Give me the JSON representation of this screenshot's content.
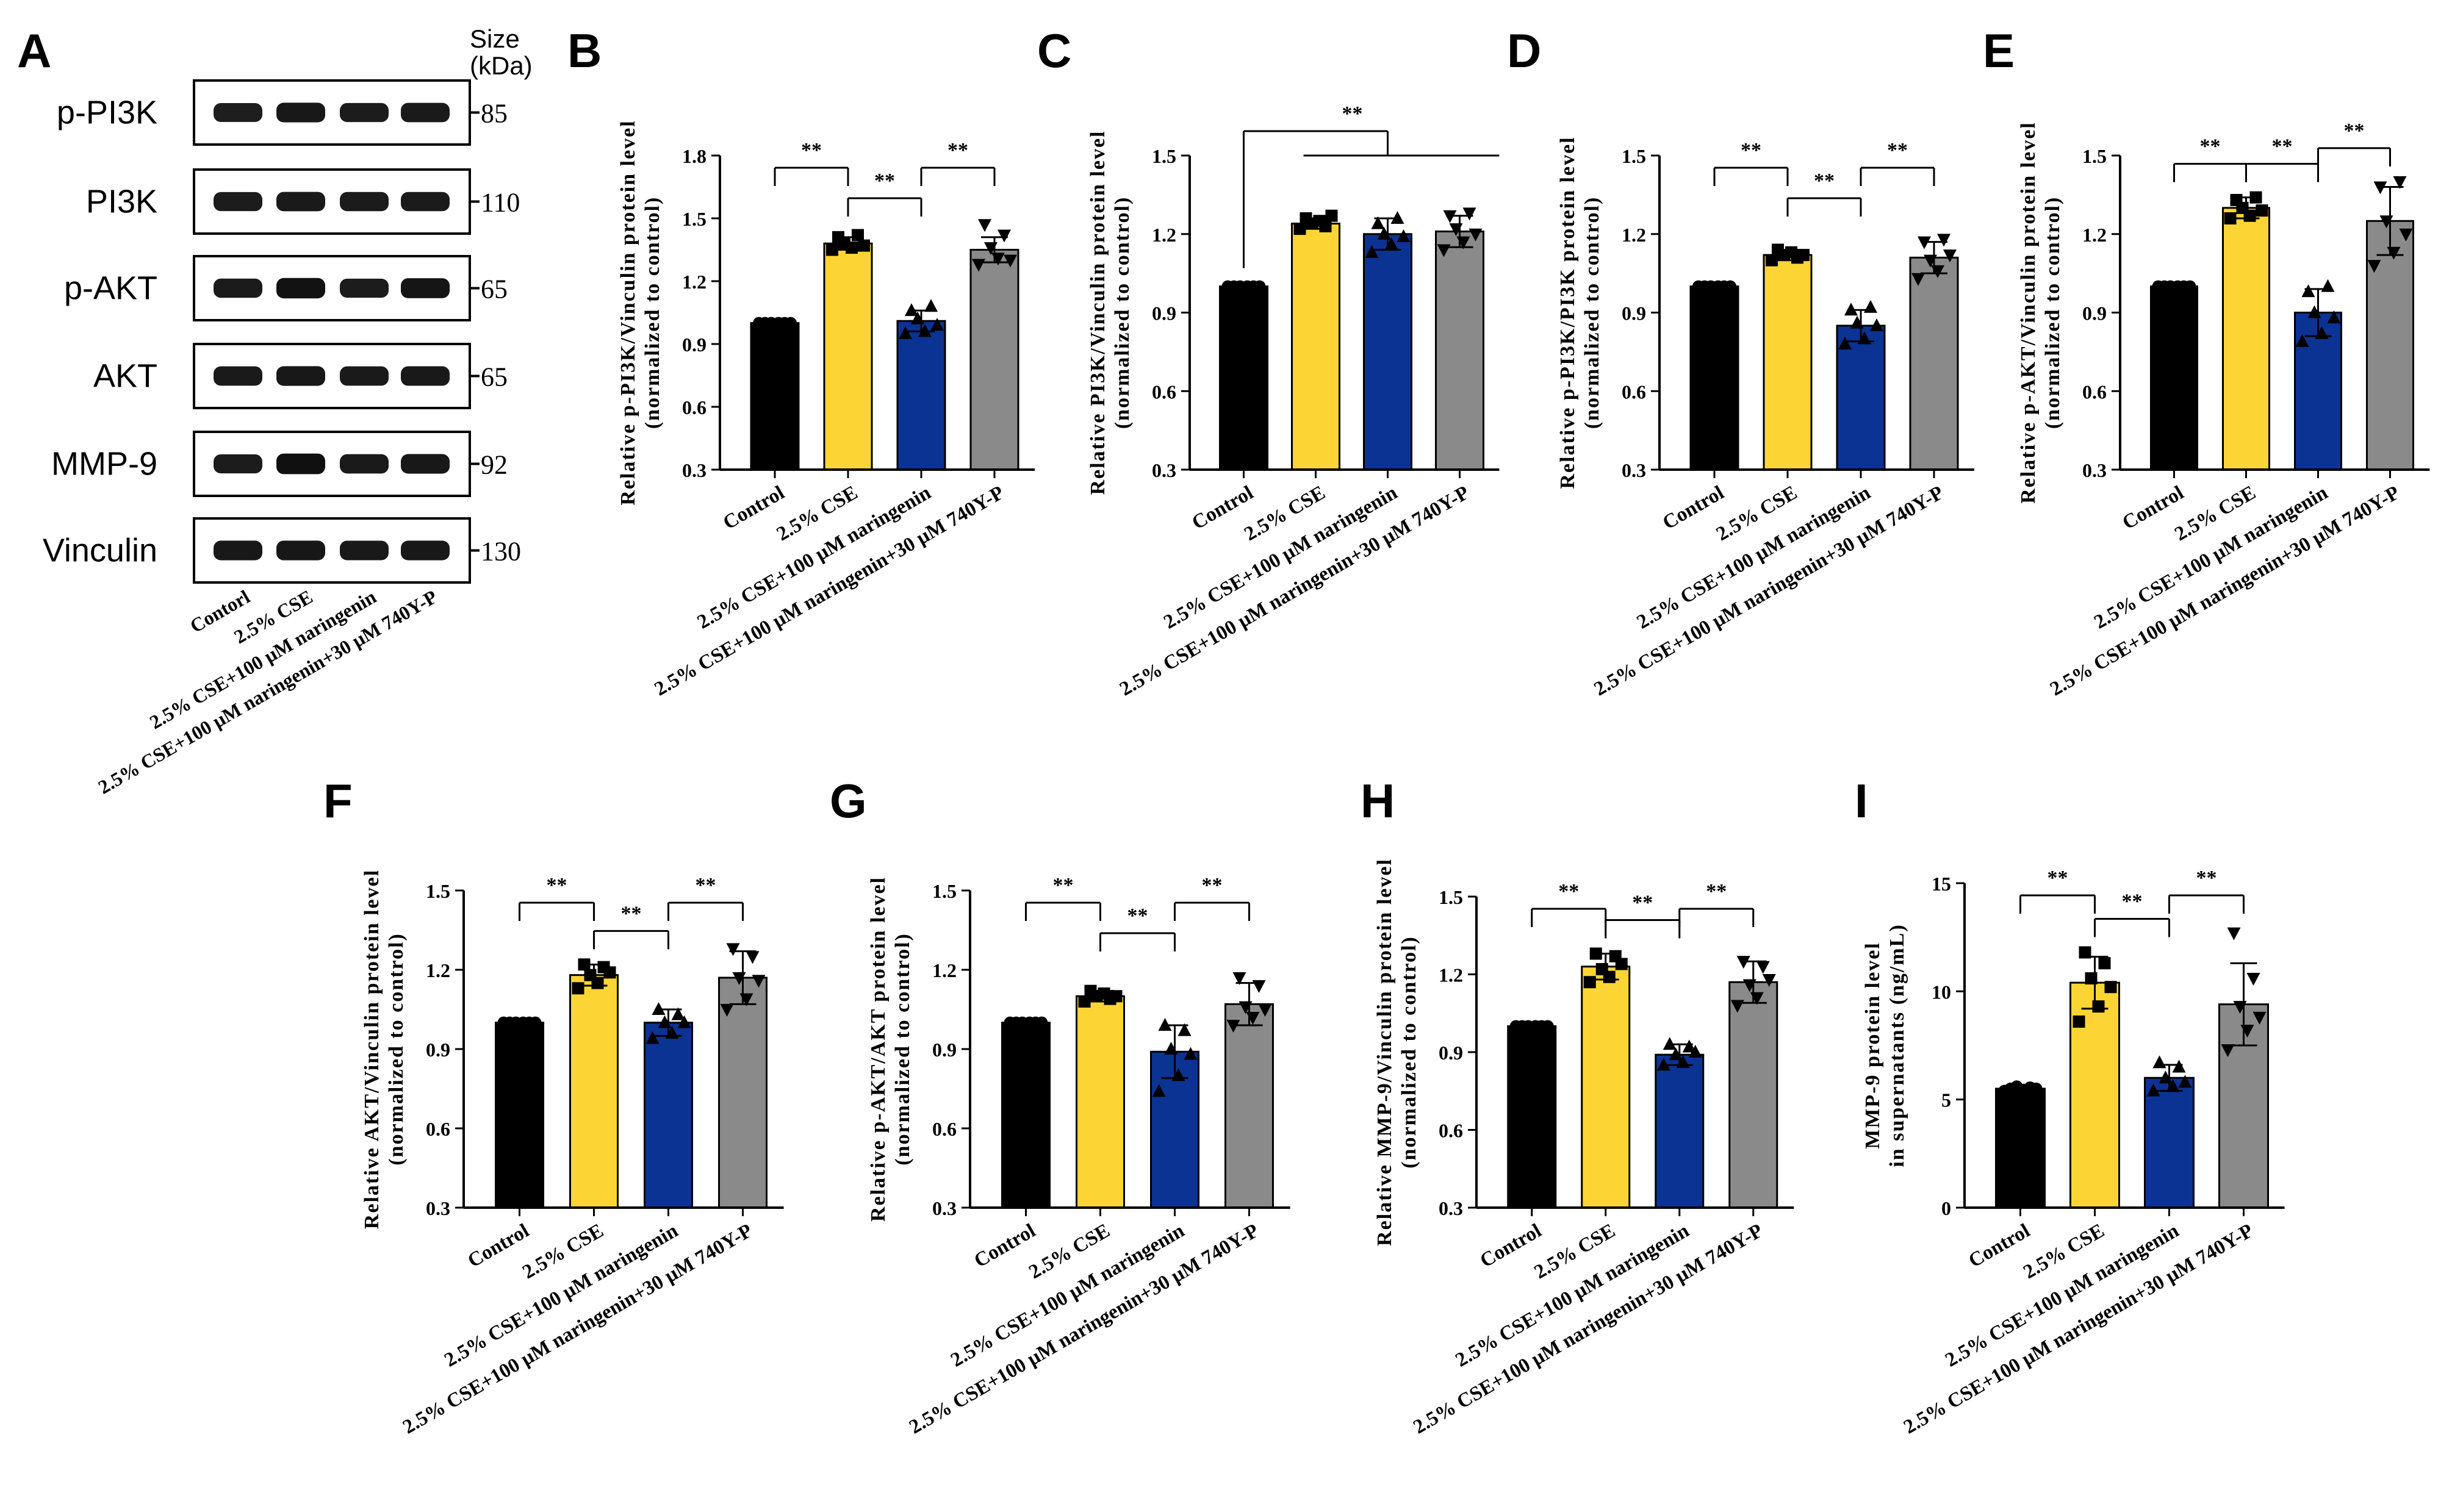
{
  "colors": {
    "control": "#000000",
    "cse": "#fcd535",
    "naringenin": "#0b3394",
    "naringenin_740yp": "#8a8a8a",
    "axis": "#000000"
  },
  "group_labels": [
    "Control",
    "2.5% CSE",
    "2.5% CSE+100 μM naringenin",
    "2.5% CSE+100 μM naringenin+30 μM 740Y-P"
  ],
  "significance": "**",
  "western_blot": {
    "panel_letter": "A",
    "size_header": [
      "Size",
      "(kDa)"
    ],
    "lane_labels": [
      "Contorl",
      "2.5% CSE",
      "2.5% CSE+100 μM naringenin",
      "2.5% CSE+100 μM naringenin+30 μM 740Y-P"
    ],
    "bands": [
      {
        "protein": "p-PI3K",
        "size": "85",
        "intensities": [
          0.75,
          0.85,
          0.78,
          0.82
        ]
      },
      {
        "protein": "PI3K",
        "size": "110",
        "intensities": [
          0.78,
          0.82,
          0.8,
          0.8
        ]
      },
      {
        "protein": "p-AKT",
        "size": "65",
        "intensities": [
          0.8,
          0.95,
          0.78,
          0.9
        ]
      },
      {
        "protein": "AKT",
        "size": "65",
        "intensities": [
          0.82,
          0.85,
          0.82,
          0.84
        ]
      },
      {
        "protein": "MMP-9",
        "size": "92",
        "intensities": [
          0.78,
          0.98,
          0.82,
          0.85
        ]
      },
      {
        "protein": "Vinculin",
        "size": "130",
        "intensities": [
          0.85,
          0.86,
          0.84,
          0.85
        ]
      }
    ]
  },
  "chart_data": [
    {
      "panel": "B",
      "type": "bar",
      "ylabel": [
        "Relative p-PI3K/Vinculin protein level",
        "(normalized to control)"
      ],
      "ylim": [
        0.3,
        1.8
      ],
      "yticks": [
        0.3,
        0.6,
        0.9,
        1.2,
        1.5,
        1.8
      ],
      "ytick_labels": [
        "0.3",
        "0.6",
        "0.9",
        "1.2",
        "1.5",
        "1.8"
      ],
      "categories": [
        "Control",
        "2.5% CSE",
        "2.5% CSE+100 μM naringenin",
        "2.5% CSE+100 μM naringenin+30 μM 740Y-P"
      ],
      "values": [
        1.0,
        1.38,
        1.01,
        1.35
      ],
      "errors": [
        0,
        0.03,
        0.05,
        0.06
      ],
      "points": [
        [
          1.0,
          1.0,
          1.0,
          1.0,
          1.0,
          1.0
        ],
        [
          1.35,
          1.41,
          1.38,
          1.36,
          1.42,
          1.37
        ],
        [
          0.95,
          1.06,
          1.02,
          0.96,
          1.08,
          0.99
        ],
        [
          1.28,
          1.47,
          1.36,
          1.31,
          1.42,
          1.3
        ]
      ],
      "brackets": [
        {
          "from": 0,
          "to": 1,
          "label": "**"
        },
        {
          "from": 1,
          "to": 2,
          "label": "**"
        },
        {
          "from": 2,
          "to": 3,
          "label": "**"
        }
      ]
    },
    {
      "panel": "C",
      "type": "bar",
      "ylabel": [
        "Relative PI3K/Vinculin protein level",
        "(normalized to control)"
      ],
      "ylim": [
        0.3,
        1.5
      ],
      "yticks": [
        0.3,
        0.6,
        0.9,
        1.2,
        1.5
      ],
      "ytick_labels": [
        "0.3",
        "0.6",
        "0.9",
        "1.2",
        "1.5"
      ],
      "categories": [
        "Control",
        "2.5% CSE",
        "2.5% CSE+100 μM naringenin",
        "2.5% CSE+100 μM naringenin+30 μM 740Y-P"
      ],
      "values": [
        1.0,
        1.24,
        1.2,
        1.21
      ],
      "errors": [
        0,
        0.02,
        0.06,
        0.06
      ],
      "points": [
        [
          1.0,
          1.0,
          1.0,
          1.0,
          1.0,
          1.0
        ],
        [
          1.22,
          1.26,
          1.24,
          1.25,
          1.23,
          1.27
        ],
        [
          1.13,
          1.24,
          1.2,
          1.16,
          1.26,
          1.19
        ],
        [
          1.14,
          1.27,
          1.22,
          1.17,
          1.28,
          1.2
        ]
      ],
      "brackets": [
        {
          "from": 0,
          "to_span": [
            1,
            3
          ],
          "label": "**"
        }
      ]
    },
    {
      "panel": "D",
      "type": "bar",
      "ylabel": [
        "Relative p-PI3K/PI3K protein level",
        "(normalized to control)"
      ],
      "ylim": [
        0.3,
        1.5
      ],
      "yticks": [
        0.3,
        0.6,
        0.9,
        1.2,
        1.5
      ],
      "ytick_labels": [
        "0.3",
        "0.6",
        "0.9",
        "1.2",
        "1.5"
      ],
      "categories": [
        "Control",
        "2.5% CSE",
        "2.5% CSE+100 μM naringenin",
        "2.5% CSE+100 μM naringenin+30 μM 740Y-P"
      ],
      "values": [
        1.0,
        1.12,
        0.85,
        1.11
      ],
      "errors": [
        0,
        0.02,
        0.06,
        0.06
      ],
      "points": [
        [
          1.0,
          1.0,
          1.0,
          1.0,
          1.0,
          1.0
        ],
        [
          1.1,
          1.14,
          1.12,
          1.13,
          1.11,
          1.12
        ],
        [
          0.78,
          0.91,
          0.86,
          0.8,
          0.92,
          0.85
        ],
        [
          1.03,
          1.17,
          1.1,
          1.06,
          1.18,
          1.12
        ]
      ],
      "brackets": [
        {
          "from": 0,
          "to": 1,
          "label": "**"
        },
        {
          "from": 1,
          "to": 2,
          "label": "**"
        },
        {
          "from": 2,
          "to": 3,
          "label": "**"
        }
      ]
    },
    {
      "panel": "E",
      "type": "bar",
      "ylabel": [
        "Relative p-AKT/Vinculin protein level",
        "(normalized to control)"
      ],
      "ylim": [
        0.3,
        1.5
      ],
      "yticks": [
        0.3,
        0.6,
        0.9,
        1.2,
        1.5
      ],
      "ytick_labels": [
        "0.3",
        "0.6",
        "0.9",
        "1.2",
        "1.5"
      ],
      "categories": [
        "Control",
        "2.5% CSE",
        "2.5% CSE+100 μM naringenin",
        "2.5% CSE+100 μM naringenin+30 μM 740Y-P"
      ],
      "values": [
        1.0,
        1.3,
        0.9,
        1.25
      ],
      "errors": [
        0,
        0.04,
        0.09,
        0.13
      ],
      "points": [
        [
          1.0,
          1.0,
          1.0,
          1.0,
          1.0,
          1.0
        ],
        [
          1.26,
          1.33,
          1.3,
          1.27,
          1.34,
          1.29
        ],
        [
          0.79,
          0.98,
          0.9,
          0.82,
          1.0,
          0.88
        ],
        [
          1.08,
          1.38,
          1.25,
          1.13,
          1.4,
          1.2
        ]
      ],
      "brackets": [
        {
          "from": 0,
          "to": 1,
          "label": "**"
        },
        {
          "from": 1,
          "to": 2,
          "label": "**"
        },
        {
          "from": 2,
          "to": 3,
          "label": "**"
        }
      ]
    },
    {
      "panel": "F",
      "type": "bar",
      "ylabel": [
        "Relative AKT/Vinculin protein level",
        "(normalized to control)"
      ],
      "ylim": [
        0.3,
        1.5
      ],
      "yticks": [
        0.3,
        0.6,
        0.9,
        1.2,
        1.5
      ],
      "ytick_labels": [
        "0.3",
        "0.6",
        "0.9",
        "1.2",
        "1.5"
      ],
      "categories": [
        "Control",
        "2.5% CSE",
        "2.5% CSE+100 μM naringenin",
        "2.5% CSE+100 μM naringenin+30 μM 740Y-P"
      ],
      "values": [
        1.0,
        1.18,
        1.0,
        1.17
      ],
      "errors": [
        0,
        0.04,
        0.05,
        0.1
      ],
      "points": [
        [
          1.0,
          1.0,
          1.0,
          1.0,
          1.0,
          1.0
        ],
        [
          1.13,
          1.22,
          1.18,
          1.15,
          1.21,
          1.19
        ],
        [
          0.94,
          1.05,
          1.0,
          0.96,
          1.03,
          1.0
        ],
        [
          1.05,
          1.28,
          1.17,
          1.09,
          1.25,
          1.16
        ]
      ],
      "brackets": [
        {
          "from": 0,
          "to": 1,
          "label": "**"
        },
        {
          "from": 1,
          "to": 2,
          "label": "**"
        },
        {
          "from": 2,
          "to": 3,
          "label": "**"
        }
      ]
    },
    {
      "panel": "G",
      "type": "bar",
      "ylabel": [
        "Relative p-AKT/AKT protein level",
        "(normalized to control)"
      ],
      "ylim": [
        0.3,
        1.5
      ],
      "yticks": [
        0.3,
        0.6,
        0.9,
        1.2,
        1.5
      ],
      "ytick_labels": [
        "0.3",
        "0.6",
        "0.9",
        "1.2",
        "1.5"
      ],
      "categories": [
        "Control",
        "2.5% CSE",
        "2.5% CSE+100 μM naringenin",
        "2.5% CSE+100 μM naringenin+30 μM 740Y-P"
      ],
      "values": [
        1.0,
        1.1,
        0.89,
        1.07
      ],
      "errors": [
        0,
        0.02,
        0.1,
        0.08
      ],
      "points": [
        [
          1.0,
          1.0,
          1.0,
          1.0,
          1.0,
          1.0
        ],
        [
          1.08,
          1.12,
          1.1,
          1.11,
          1.09,
          1.1
        ],
        [
          0.74,
          0.99,
          0.9,
          0.8,
          0.97,
          0.88
        ],
        [
          0.99,
          1.17,
          1.06,
          1.02,
          1.14,
          1.05
        ]
      ],
      "brackets": [
        {
          "from": 0,
          "to": 1,
          "label": "**"
        },
        {
          "from": 1,
          "to": 2,
          "label": "**"
        },
        {
          "from": 2,
          "to": 3,
          "label": "**"
        }
      ]
    },
    {
      "panel": "H",
      "type": "bar",
      "ylabel": [
        "Relative MMP-9/Vinculin protein level",
        "(normalized to control)"
      ],
      "ylim": [
        0.3,
        1.5
      ],
      "yticks": [
        0.3,
        0.6,
        0.9,
        1.2,
        1.5
      ],
      "ytick_labels": [
        "0.3",
        "0.6",
        "0.9",
        "1.2",
        "1.5"
      ],
      "categories": [
        "Control",
        "2.5% CSE",
        "2.5% CSE+100 μM naringenin",
        "2.5% CSE+100 μM naringenin+30 μM 740Y-P"
      ],
      "values": [
        1.0,
        1.23,
        0.89,
        1.17
      ],
      "errors": [
        0,
        0.05,
        0.04,
        0.08
      ],
      "points": [
        [
          1.0,
          1.0,
          1.0,
          1.0,
          1.0,
          1.0
        ],
        [
          1.17,
          1.28,
          1.22,
          1.19,
          1.27,
          1.24
        ],
        [
          0.85,
          0.93,
          0.89,
          0.86,
          0.92,
          0.9
        ],
        [
          1.08,
          1.25,
          1.16,
          1.11,
          1.23,
          1.18
        ]
      ],
      "brackets": [
        {
          "from": 0,
          "to": 1,
          "label": "**"
        },
        {
          "from": 1,
          "to": 2,
          "label": "**"
        },
        {
          "from": 2,
          "to": 3,
          "label": "**"
        }
      ]
    },
    {
      "panel": "I",
      "type": "bar",
      "ylabel": [
        "MMP-9 protein level",
        "in supernatants (ng/mL)"
      ],
      "ylim": [
        0,
        15
      ],
      "yticks": [
        0,
        5,
        10,
        15
      ],
      "ytick_labels": [
        "0",
        "5",
        "10",
        "15"
      ],
      "categories": [
        "Control",
        "2.5% CSE",
        "2.5% CSE+100 μM naringenin",
        "2.5% CSE+100 μM naringenin+30 μM 740Y-P"
      ],
      "values": [
        5.5,
        10.4,
        6.0,
        9.4
      ],
      "errors": [
        0.15,
        1.2,
        0.6,
        1.9
      ],
      "points": [
        [
          5.4,
          5.5,
          5.6,
          5.45,
          5.55,
          5.5
        ],
        [
          8.6,
          11.8,
          10.6,
          9.3,
          11.3,
          10.2
        ],
        [
          5.4,
          6.7,
          6.0,
          5.6,
          6.5,
          5.8
        ],
        [
          7.3,
          12.7,
          9.3,
          8.2,
          10.6,
          8.8
        ]
      ],
      "brackets": [
        {
          "from": 0,
          "to": 1,
          "label": "**"
        },
        {
          "from": 1,
          "to": 2,
          "label": "**"
        },
        {
          "from": 2,
          "to": 3,
          "label": "**"
        }
      ]
    }
  ]
}
